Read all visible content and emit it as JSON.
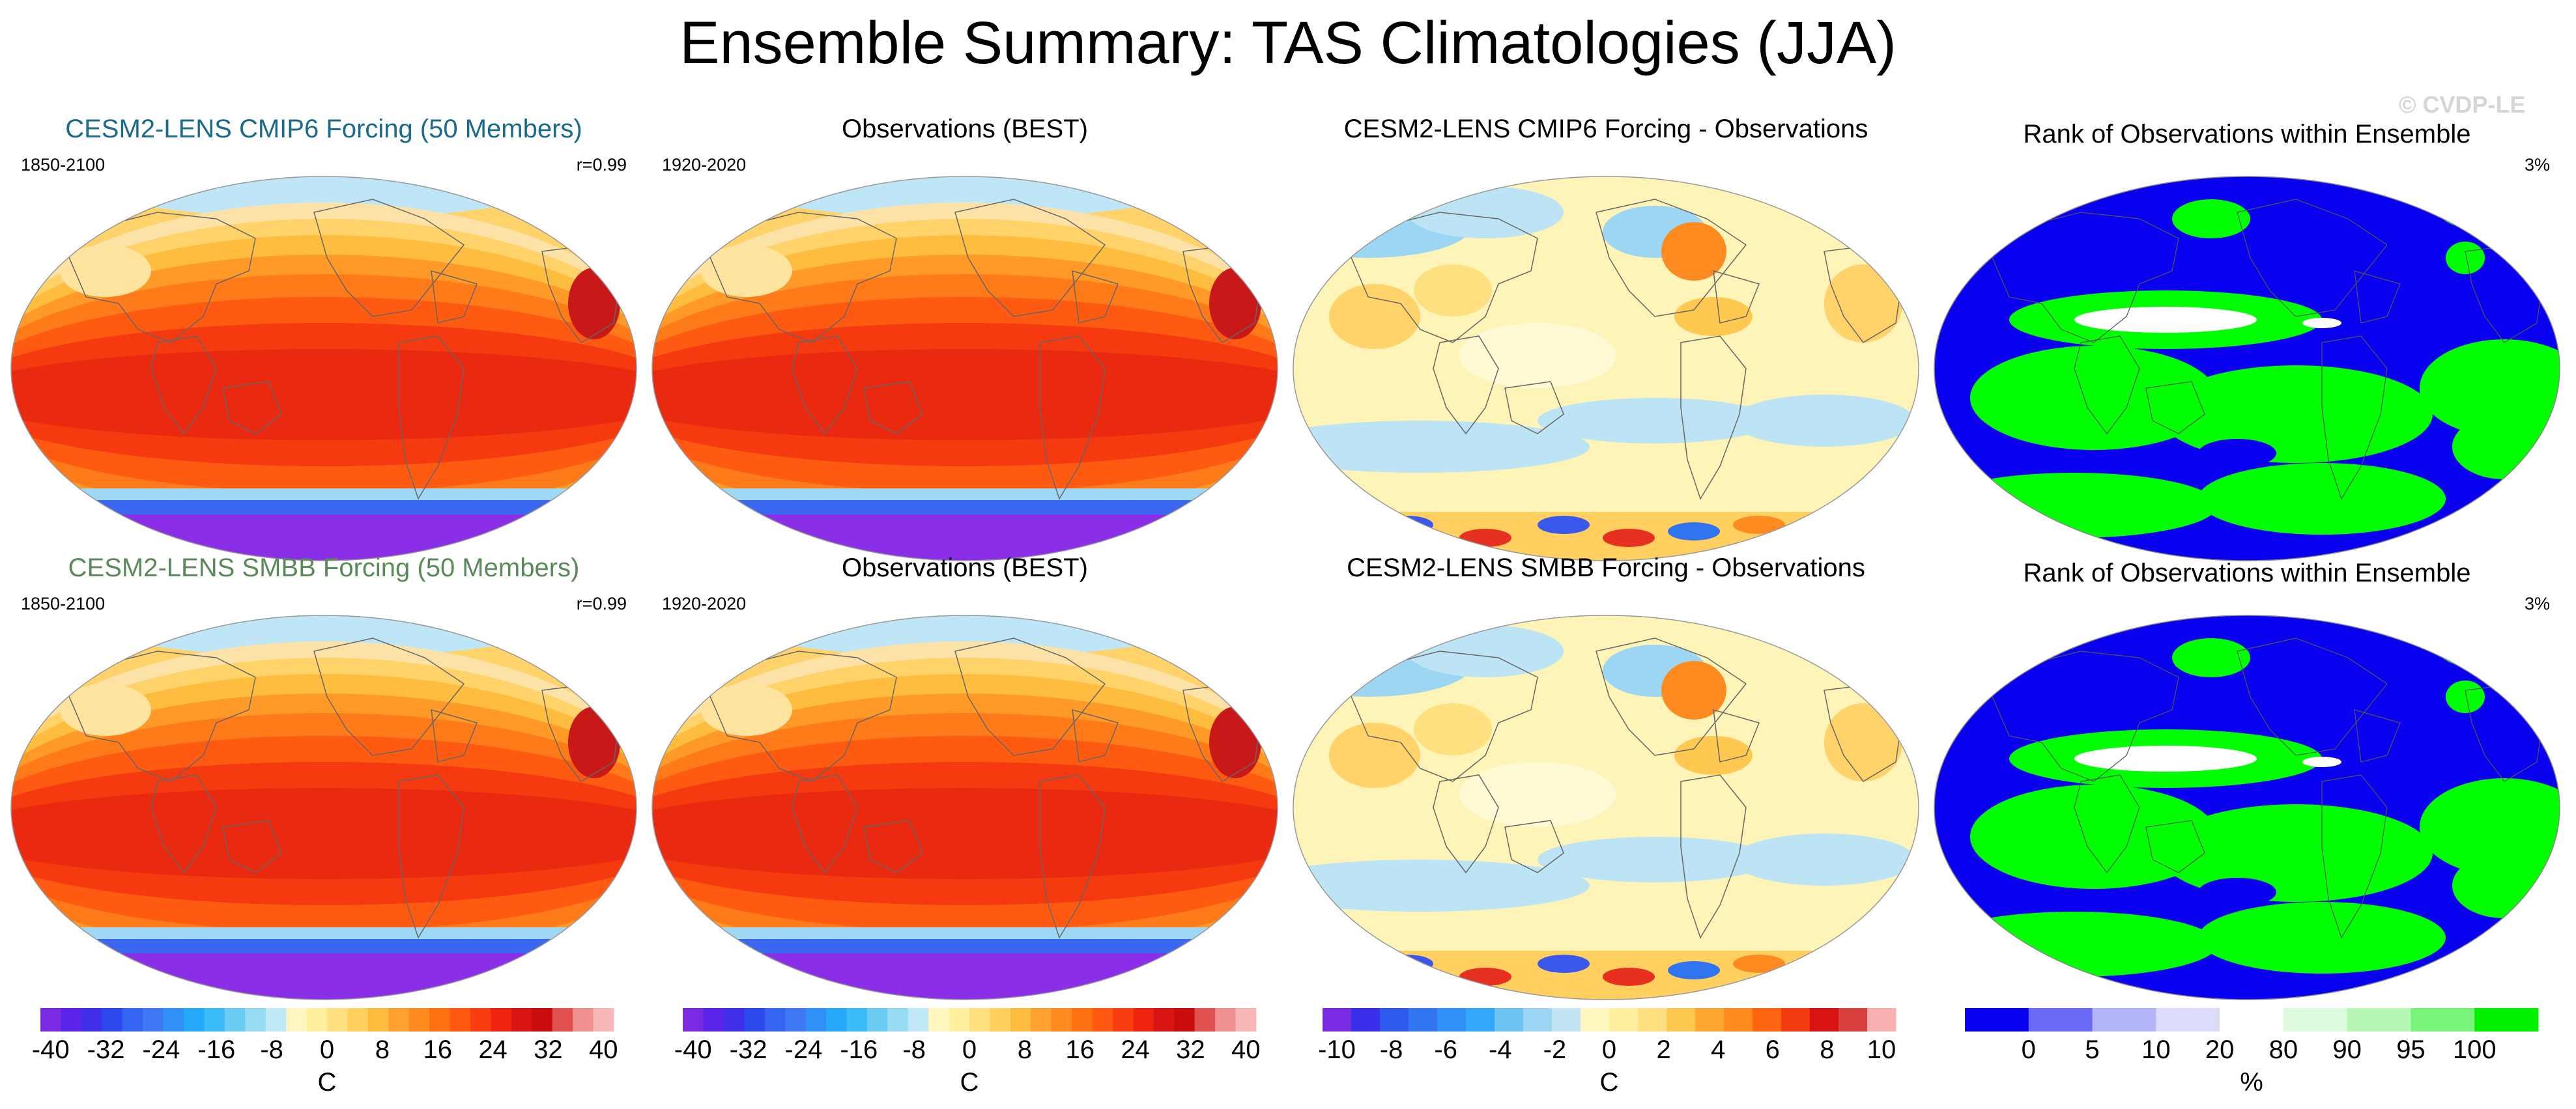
{
  "title": "Ensemble Summary: TAS Climatologies (JJA)",
  "watermark": "© CVDP-LE",
  "colors": {
    "title_row1_col1": "#1a6a8a",
    "title_row2_col1": "#5a8a5a",
    "rank_blue": "#0a00f0",
    "rank_green": "#00ff00",
    "continent_line": "#555555"
  },
  "panels": [
    {
      "id": "r1c1",
      "title": "CESM2-LENS CMIP6 Forcing (50 Members)",
      "left_sub": "1850-2100",
      "right_sub": "r=0.99",
      "kind": "climatology"
    },
    {
      "id": "r1c2",
      "title": "Observations (BEST)",
      "left_sub": "1920-2020",
      "right_sub": "",
      "kind": "climatology"
    },
    {
      "id": "r1c3",
      "title": "CESM2-LENS CMIP6 Forcing - Observations",
      "left_sub": "",
      "right_sub": "",
      "kind": "difference"
    },
    {
      "id": "r1c4",
      "title": "Rank of Observations within Ensemble",
      "left_sub": "",
      "right_sub": "3%",
      "kind": "rank"
    },
    {
      "id": "r2c1",
      "title": "CESM2-LENS SMBB Forcing (50 Members)",
      "left_sub": "1850-2100",
      "right_sub": "r=0.99",
      "kind": "climatology"
    },
    {
      "id": "r2c2",
      "title": "Observations (BEST)",
      "left_sub": "1920-2020",
      "right_sub": "",
      "kind": "climatology"
    },
    {
      "id": "r2c3",
      "title": "CESM2-LENS SMBB Forcing - Observations",
      "left_sub": "",
      "right_sub": "",
      "kind": "difference"
    },
    {
      "id": "r2c4",
      "title": "Rank of Observations within Ensemble",
      "left_sub": "",
      "right_sub": "3%",
      "kind": "rank"
    }
  ],
  "colorbars": [
    {
      "id": "cb1",
      "unit": "C",
      "labels": [
        "-40",
        "-32",
        "-24",
        "-16",
        "-8",
        "0",
        "8",
        "16",
        "24",
        "32",
        "40"
      ],
      "colors": [
        "#7a2ae0",
        "#5b24e8",
        "#3f2fe8",
        "#2c49ec",
        "#3563f2",
        "#3e78f4",
        "#2f90f6",
        "#25a8f8",
        "#3cbcf6",
        "#6cccf4",
        "#98dcf4",
        "#bee8f6",
        "#fff6c0",
        "#fff0a0",
        "#ffe080",
        "#ffd060",
        "#ffbd40",
        "#ffa030",
        "#ff8a20",
        "#ff7010",
        "#ff5810",
        "#f83e10",
        "#ee2410",
        "#d81414",
        "#c80c0c",
        "#e05050",
        "#f09090",
        "#f8b8b8"
      ]
    },
    {
      "id": "cb2",
      "unit": "C",
      "labels": [
        "-40",
        "-32",
        "-24",
        "-16",
        "-8",
        "0",
        "8",
        "16",
        "24",
        "32",
        "40"
      ],
      "colors": [
        "#7a2ae0",
        "#5b24e8",
        "#3f2fe8",
        "#2c49ec",
        "#3563f2",
        "#3e78f4",
        "#2f90f6",
        "#25a8f8",
        "#3cbcf6",
        "#6cccf4",
        "#98dcf4",
        "#bee8f6",
        "#fff6c0",
        "#fff0a0",
        "#ffe080",
        "#ffd060",
        "#ffbd40",
        "#ffa030",
        "#ff8a20",
        "#ff7010",
        "#ff5810",
        "#f83e10",
        "#ee2410",
        "#d81414",
        "#c80c0c",
        "#e05050",
        "#f09090",
        "#f8b8b8"
      ]
    },
    {
      "id": "cb3",
      "unit": "C",
      "labels": [
        "-10",
        "-8",
        "-6",
        "-4",
        "-2",
        "0",
        "2",
        "4",
        "6",
        "8",
        "10"
      ],
      "colors": [
        "#7a2ae0",
        "#3a2ee8",
        "#2f58ec",
        "#3074f0",
        "#2f90f6",
        "#32a8f8",
        "#6cc4f4",
        "#9cd6f2",
        "#c4e4f4",
        "#fff6c0",
        "#fff0a0",
        "#ffe080",
        "#ffc850",
        "#ffa830",
        "#ff8a20",
        "#ff6410",
        "#f03c10",
        "#d81414",
        "#d84040",
        "#f8b0b0"
      ]
    },
    {
      "id": "cb4",
      "unit": "%",
      "labels": [
        "0",
        "5",
        "10",
        "20",
        "80",
        "90",
        "95",
        "100"
      ],
      "colors": [
        "#0a00f0",
        "#6a6af6",
        "#b4b4f8",
        "#dcdcfa",
        "#ffffff",
        "#dcfadc",
        "#b4f8b4",
        "#78f478",
        "#00f000"
      ]
    }
  ]
}
